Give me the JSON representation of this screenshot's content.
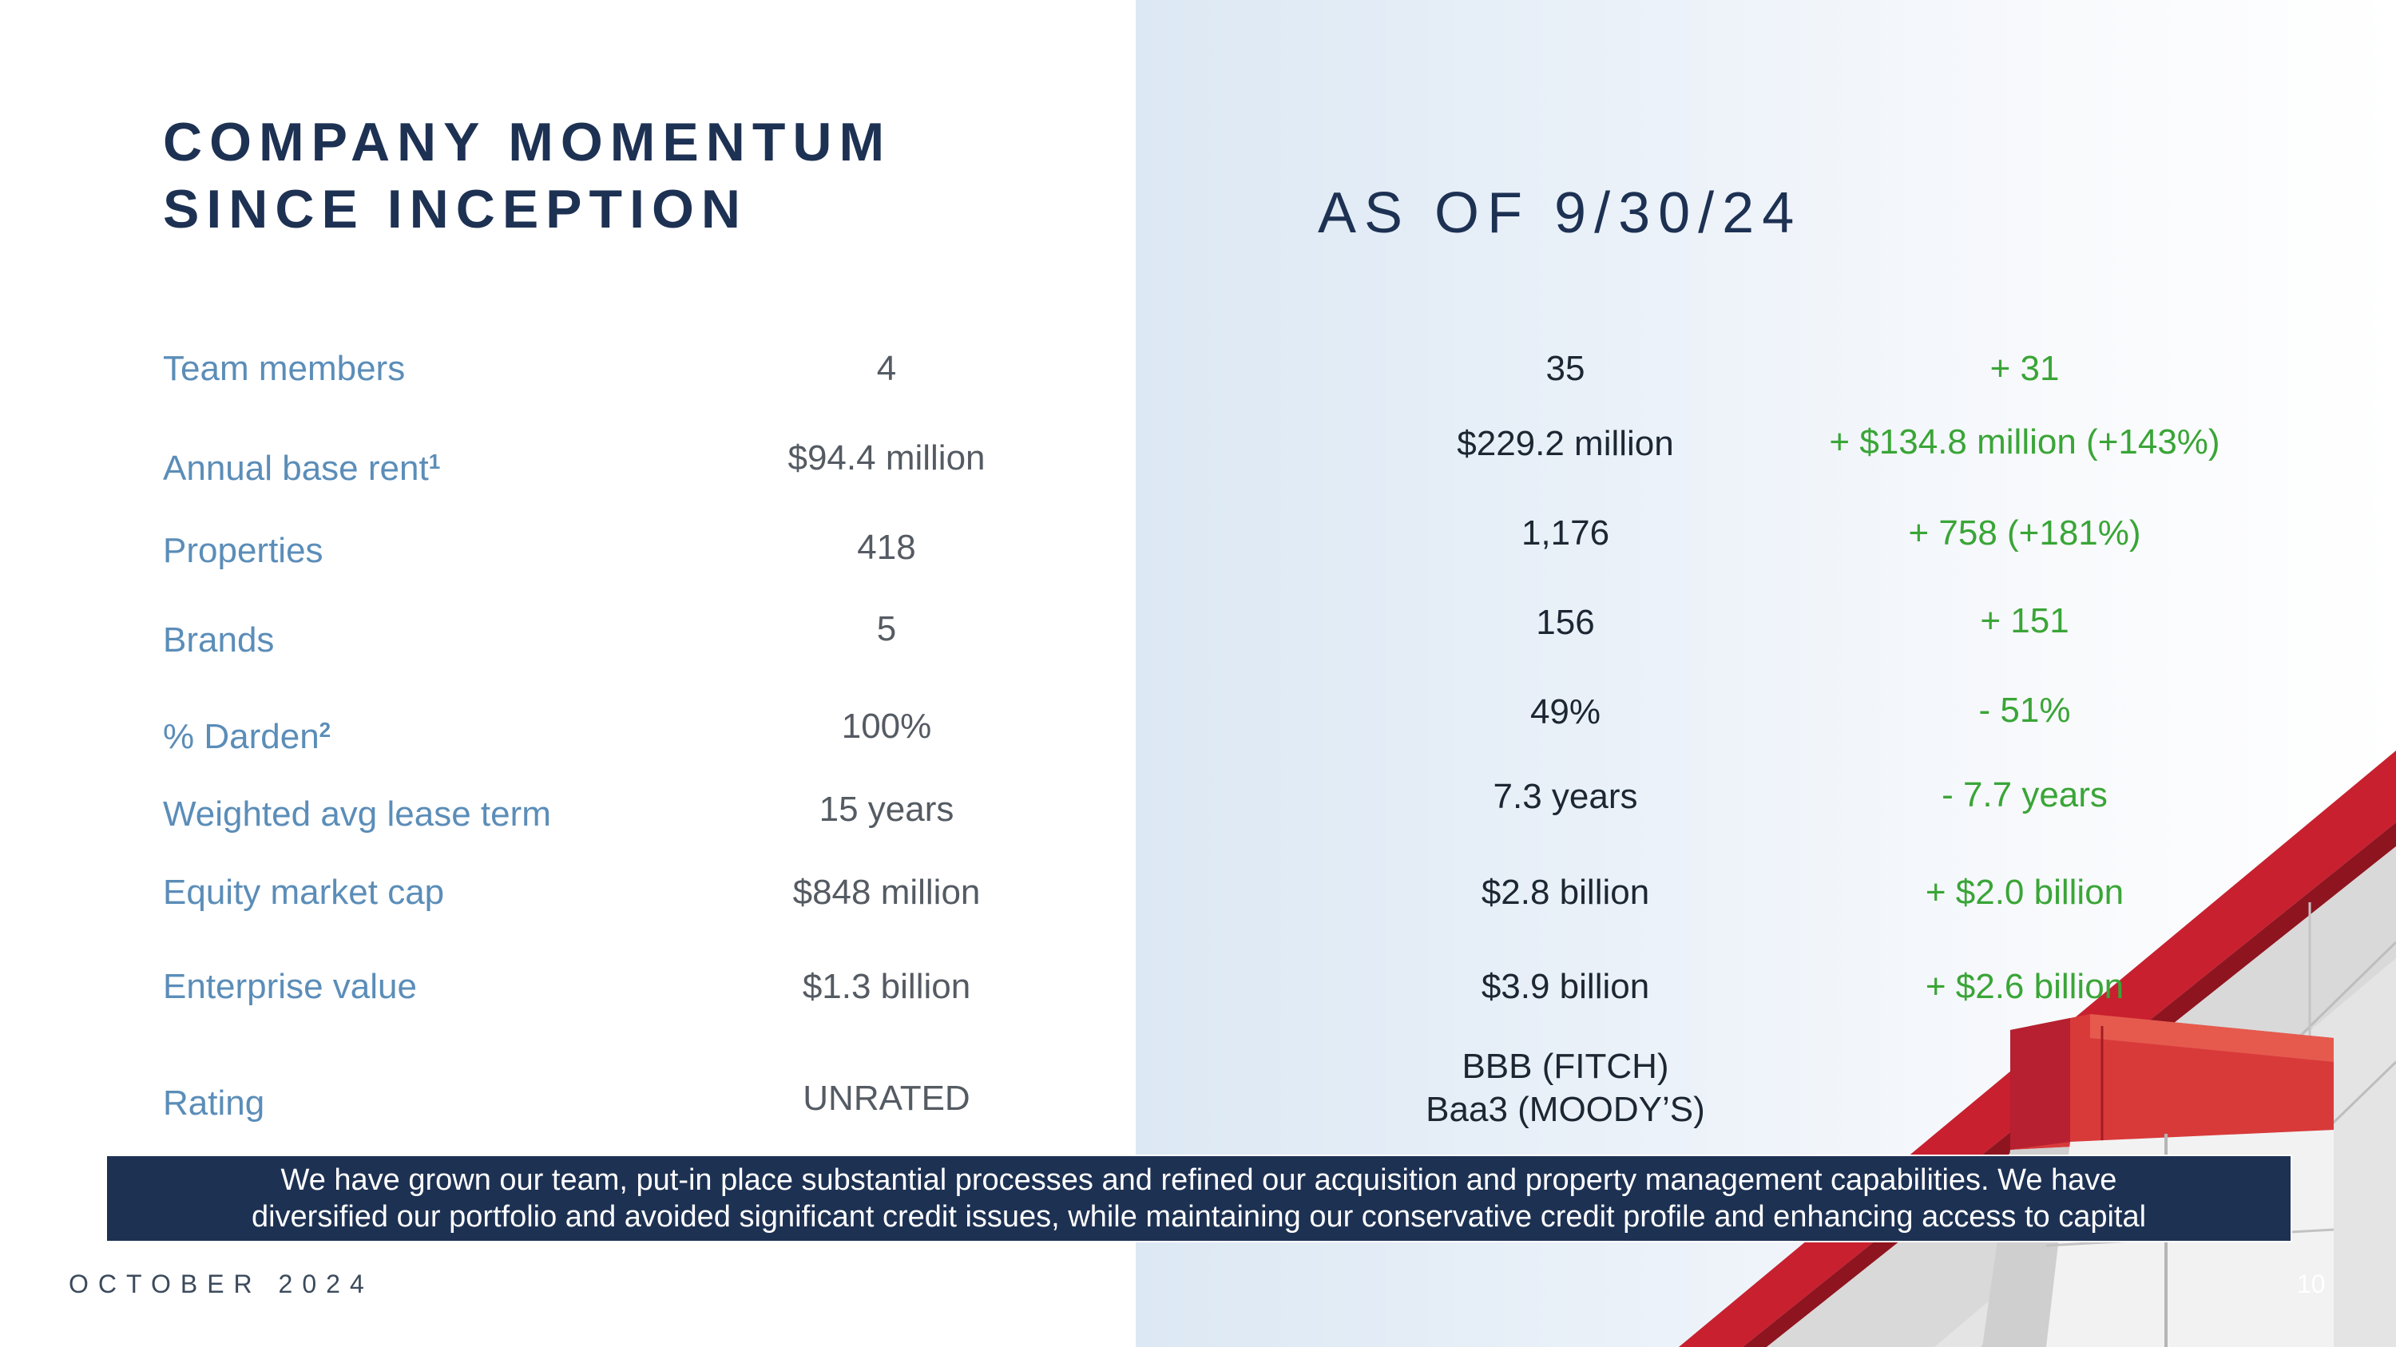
{
  "title": {
    "line1": "COMPANY MOMENTUM",
    "line2": "SINCE INCEPTION"
  },
  "as_of": "AS OF 9/30/24",
  "rows": [
    {
      "label": "Team members",
      "sup": "",
      "inception": "4",
      "current": "35",
      "change": "+ 31"
    },
    {
      "label": "Annual base rent",
      "sup": "1",
      "inception": "$94.4 million",
      "current": "$229.2 million",
      "change": "+ $134.8 million (+143%)"
    },
    {
      "label": "Properties",
      "sup": "",
      "inception": "418",
      "current": "1,176",
      "change": "+ 758 (+181%)"
    },
    {
      "label": "Brands",
      "sup": "",
      "inception": "5",
      "current": "156",
      "change": "+ 151"
    },
    {
      "label": "% Darden",
      "sup": "2",
      "inception": "100%",
      "current": "49%",
      "change": "- 51%"
    },
    {
      "label": "Weighted avg lease term",
      "sup": "",
      "inception": "15 years",
      "current": "7.3 years",
      "change": "- 7.7 years"
    },
    {
      "label": "Equity market cap",
      "sup": "",
      "inception": "$848 million",
      "current": "$2.8 billion",
      "change": "+ $2.0 billion"
    },
    {
      "label": "Enterprise value",
      "sup": "",
      "inception": "$1.3 billion",
      "current": "$3.9 billion",
      "change": "+ $2.6 billion"
    },
    {
      "label": "Rating",
      "sup": "",
      "inception": "UNRATED",
      "current_line1": "BBB (FITCH)",
      "current_line2": "Baa3 (MOODY’S)",
      "change": ""
    }
  ],
  "banner": {
    "line1": "We have grown our team, put-in place substantial processes and refined our acquisition and property management capabilities. We have",
    "line2": "diversified our portfolio and avoided significant credit issues, while maintaining our conservative credit profile and enhancing access to capital"
  },
  "footer": {
    "date": "OCTOBER 2024",
    "page": "10"
  },
  "colors": {
    "navy": "#1d3153",
    "label_blue": "#5b8db8",
    "positive_green": "#3aa537",
    "building_red": "#c8202f"
  }
}
